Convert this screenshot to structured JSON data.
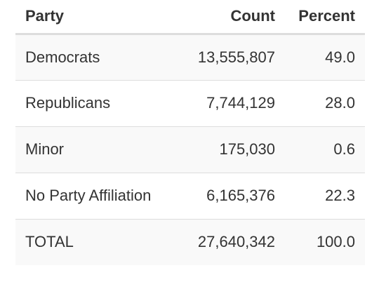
{
  "table": {
    "headers": [
      "Party",
      "Count",
      "Percent"
    ],
    "rows": [
      {
        "party": "Democrats",
        "count": "13,555,807",
        "percent": "49.0"
      },
      {
        "party": "Republicans",
        "count": "7,744,129",
        "percent": "28.0"
      },
      {
        "party": "Minor",
        "count": "175,030",
        "percent": "0.6"
      },
      {
        "party": "No Party Affiliation",
        "count": "6,165,376",
        "percent": "22.3"
      },
      {
        "party": "TOTAL",
        "count": "27,640,342",
        "percent": "100.0"
      }
    ]
  },
  "colors": {
    "text": "#333333",
    "stripe": "#f9f9f9",
    "border": "#dddddd"
  }
}
